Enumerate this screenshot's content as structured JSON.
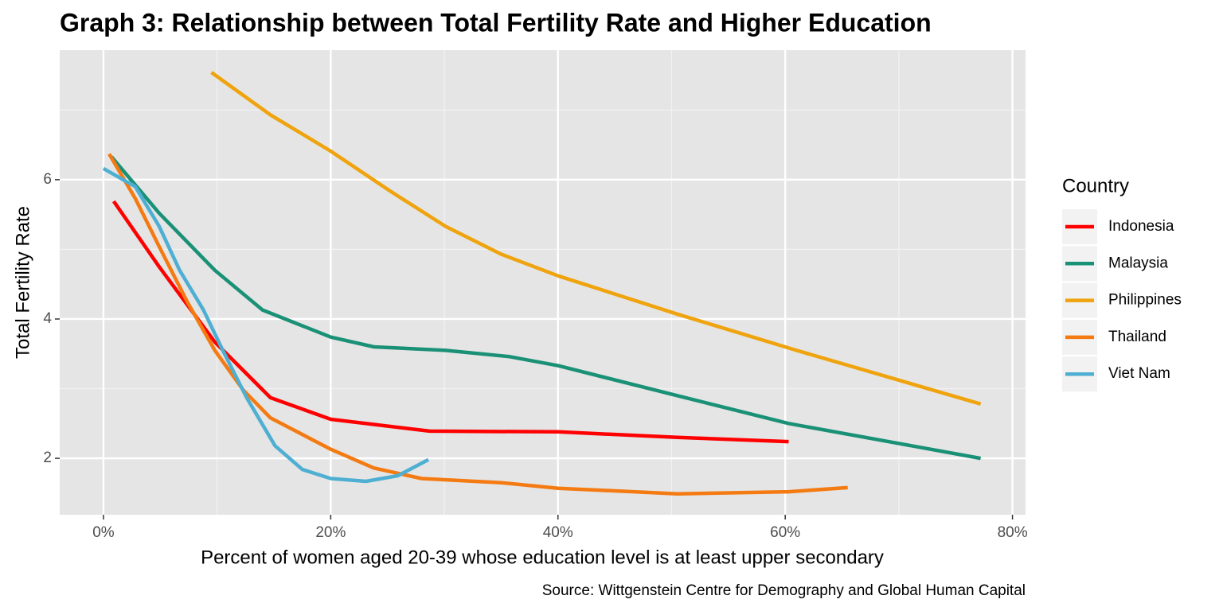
{
  "chart_data": {
    "type": "line",
    "title": "Graph 3: Relationship between Total Fertility Rate and Higher Education",
    "x_label": "Percent of women aged 20-39 whose education level is at least upper secondary",
    "y_label": "Total Fertility Rate",
    "caption": "Source: Wittgenstein Centre for Demography and Global Human Capital",
    "legend_title": "Country",
    "legend": "right",
    "grid": true,
    "xlim": [
      -3.85,
      81.15
    ],
    "ylim": [
      1.19,
      7.86
    ],
    "xticks": [
      {
        "value": 0,
        "label": "0%"
      },
      {
        "value": 20,
        "label": "20%"
      },
      {
        "value": 40,
        "label": "40%"
      },
      {
        "value": 60,
        "label": "60%"
      },
      {
        "value": 80,
        "label": "80%"
      }
    ],
    "yticks": [
      2,
      4,
      6
    ],
    "series": [
      {
        "name": "Indonesia",
        "color": "#ff0000",
        "x": [
          0.9,
          4.9,
          9.8,
          14.7,
          20,
          28.7,
          40,
          50.5,
          60.3
        ],
        "values": [
          5.69,
          4.75,
          3.67,
          2.87,
          2.56,
          2.39,
          2.38,
          2.3,
          2.24
        ]
      },
      {
        "name": "Malaysia",
        "color": "#1a9176",
        "x": [
          0.7,
          4.9,
          9.8,
          14.0,
          20,
          23.8,
          30.1,
          35.7,
          40,
          50.5,
          60.3,
          70.1,
          77.2
        ],
        "values": [
          6.33,
          5.52,
          4.7,
          4.13,
          3.74,
          3.6,
          3.55,
          3.46,
          3.33,
          2.9,
          2.5,
          2.21,
          2.0
        ]
      },
      {
        "name": "Philippines",
        "color": "#efa30d",
        "x": [
          9.5,
          14.7,
          20,
          25.2,
          30.1,
          35,
          40,
          50.5,
          61,
          77.2
        ],
        "values": [
          7.54,
          6.93,
          6.41,
          5.84,
          5.33,
          4.93,
          4.62,
          4.07,
          3.55,
          2.78
        ]
      },
      {
        "name": "Thailand",
        "color": "#f47a12",
        "x": [
          0.5,
          2.8,
          4.9,
          7.4,
          9.8,
          12.3,
          14.7,
          20,
          23.8,
          28,
          35,
          40,
          50.5,
          60.3,
          65.5
        ],
        "values": [
          6.37,
          5.73,
          5.04,
          4.24,
          3.55,
          2.98,
          2.58,
          2.13,
          1.86,
          1.71,
          1.65,
          1.57,
          1.49,
          1.52,
          1.58
        ]
      },
      {
        "name": "Viet Nam",
        "color": "#4eafd2",
        "x": [
          0,
          2.8,
          4.9,
          6.7,
          8.8,
          10.5,
          12.6,
          15.1,
          17.5,
          20,
          23.1,
          25.9,
          28.6
        ],
        "values": [
          6.16,
          5.9,
          5.33,
          4.7,
          4.13,
          3.55,
          2.87,
          2.18,
          1.84,
          1.71,
          1.67,
          1.75,
          1.98
        ]
      }
    ]
  }
}
